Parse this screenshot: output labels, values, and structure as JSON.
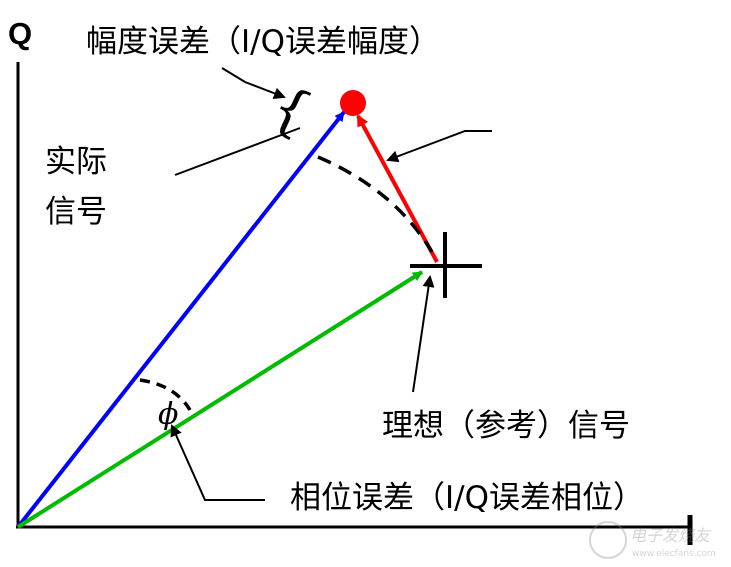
{
  "axes": {
    "q_label": "Q",
    "i_label": "I"
  },
  "labels": {
    "amplitude_error": "幅度误差（I/Q误差幅度）",
    "actual_signal_line1": "实际",
    "actual_signal_line2": "信号",
    "ideal_signal": "理想（参考）信号",
    "phase_error": "相位误差（I/Q误差相位）",
    "phi": "ϕ"
  },
  "colors": {
    "actual_vector": "#0000ff",
    "ideal_vector": "#00bb00",
    "error_vector": "#ff0000",
    "actual_point": "#ff0000"
  },
  "watermark": {
    "text": "电子发烧友",
    "url": "www.elecfans.com"
  }
}
